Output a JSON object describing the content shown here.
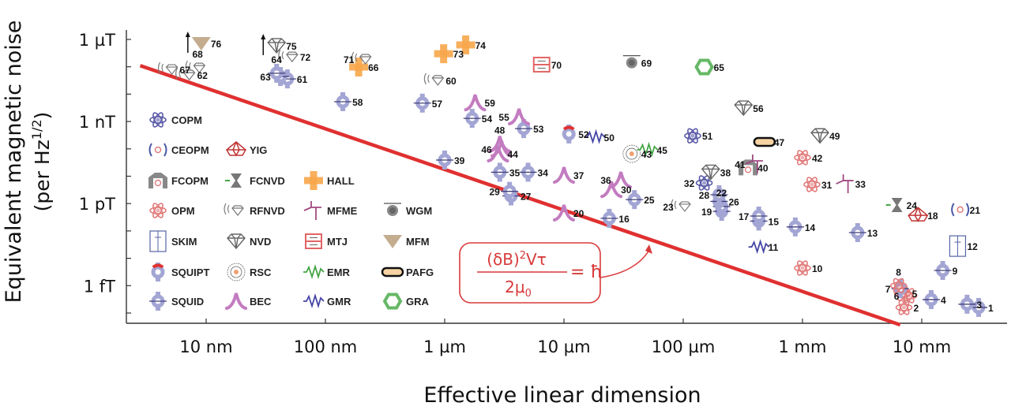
{
  "chart_data": {
    "type": "scatter",
    "title": "",
    "xlabel": "Effective linear dimension",
    "ylabel": "Equivalent magnetic noise",
    "ylabel_line2": "(per Hz",
    "ylabel_sup": "1/2",
    "ylabel_close": ")",
    "x_scale": "log",
    "y_scale": "log",
    "x_unit": "m",
    "y_unit": "T/Hz^1/2",
    "xlim": [
      2.1e-09,
      0.052
    ],
    "ylim": [
      4.3e-17,
      2e-06
    ],
    "grid": false,
    "x_ticks": [
      {
        "value": 1e-08,
        "label": "10 nm"
      },
      {
        "value": 1e-07,
        "label": "100 nm"
      },
      {
        "value": 1e-06,
        "label": "1 µm"
      },
      {
        "value": 1e-05,
        "label": "10 µm"
      },
      {
        "value": 0.0001,
        "label": "100 µm"
      },
      {
        "value": 0.001,
        "label": "1 mm"
      },
      {
        "value": 0.01,
        "label": "10 mm"
      }
    ],
    "y_ticks": [
      {
        "value": 1e-06,
        "label": "1 µT"
      },
      {
        "value": 1e-09,
        "label": "1 nT"
      },
      {
        "value": 1e-12,
        "label": "1 pT"
      },
      {
        "value": 1e-15,
        "label": "1 fT"
      }
    ],
    "limit_line": {
      "color": "#e03030",
      "points": [
        [
          2.8e-09,
          1.1e-07
        ],
        [
          0.0066,
          3.7e-17
        ]
      ]
    },
    "annotation": {
      "num_a": "(δB)",
      "num_sup": "2",
      "num_b": "Vτ",
      "den_a": "2μ",
      "den_sub": "0",
      "rhs": "= ħ",
      "color": "#d83a3a"
    },
    "legend": {
      "placement": "inside-left",
      "rows": [
        [
          "COPM"
        ],
        [
          "CEOPM",
          "YIG"
        ],
        [
          "FCOPM",
          "FCNVD",
          "HALL"
        ],
        [
          "OPM",
          "RFNVD",
          "MFME",
          "WGM"
        ],
        [
          "SKIM",
          "NVD",
          "MTJ",
          "MFM"
        ],
        [
          "SQUIPT",
          "RSC",
          "EMR",
          "PAFG"
        ],
        [
          "SQUID",
          "BEC",
          "GMR",
          "GRA"
        ]
      ]
    },
    "colors": {
      "SQUID": "#a3a5d4",
      "OPM": "#e27b7b",
      "COPM": "#5a5aa8",
      "BEC": "#c37cc0",
      "HALL": "#f7a64a",
      "NVD": "#666666",
      "RFNVD": "#777777",
      "GMR": "#4545a5",
      "EMR": "#45a545",
      "MTJ": "#e26565",
      "WGM": "#888888",
      "MFM": "#c4ac8f",
      "GRA": "#66b866",
      "PAFG": "#f7d3a3",
      "YIG": "#c23535",
      "SKIM": "#5565a5",
      "CEOPM": "#4a5aa8",
      "FCOPM": "#888888",
      "FCNVD": "#777777",
      "RSC": "#666666",
      "MFME": "#a04a80",
      "SQUIPT": "#a3a5d4"
    },
    "points": [
      {
        "id": "1",
        "type": "SQUID",
        "x": 0.03,
        "y": 1.6e-16
      },
      {
        "id": "2",
        "type": "OPM",
        "x": 0.0071,
        "y": 1.6e-16
      },
      {
        "id": "3",
        "type": "SQUID",
        "x": 0.024,
        "y": 2.1e-16
      },
      {
        "id": "4",
        "type": "SQUID",
        "x": 0.012,
        "y": 3.1e-16
      },
      {
        "id": "5",
        "type": "OPM",
        "x": 0.0069,
        "y": 5.2e-16
      },
      {
        "id": "6",
        "type": "OPM",
        "x": 0.0078,
        "y": 4.3e-16
      },
      {
        "id": "7",
        "type": "SQUID",
        "x": 0.0066,
        "y": 7.8e-16
      },
      {
        "id": "8",
        "type": "OPM",
        "x": 0.0064,
        "y": 1e-15
      },
      {
        "id": "9",
        "type": "SQUID",
        "x": 0.015,
        "y": 3.6e-15
      },
      {
        "id": "10",
        "type": "OPM",
        "x": 0.001,
        "y": 4.4e-15
      },
      {
        "id": "11",
        "type": "GMR",
        "x": 0.00043,
        "y": 2.6e-14
      },
      {
        "id": "12",
        "type": "SKIM",
        "x": 0.02,
        "y": 2.8e-14
      },
      {
        "id": "13",
        "type": "SQUID",
        "x": 0.0029,
        "y": 8.7e-14
      },
      {
        "id": "14",
        "type": "SQUID",
        "x": 0.00087,
        "y": 1.4e-13
      },
      {
        "id": "15",
        "type": "SQUID",
        "x": 0.00043,
        "y": 2.3e-13
      },
      {
        "id": "16",
        "type": "SQUID",
        "x": 2.4e-05,
        "y": 2.9e-13
      },
      {
        "id": "17",
        "type": "SQUID",
        "x": 0.00043,
        "y": 3.5e-13
      },
      {
        "id": "18",
        "type": "YIG",
        "x": 0.0093,
        "y": 3.7e-13
      },
      {
        "id": "19",
        "type": "SQUID",
        "x": 0.00021,
        "y": 5.2e-13
      },
      {
        "id": "20",
        "type": "BEC",
        "x": 1e-05,
        "y": 4.6e-13
      },
      {
        "id": "21",
        "type": "CEOPM",
        "x": 0.021,
        "y": 6e-13
      },
      {
        "id": "22",
        "type": "SQUID",
        "x": 0.00021,
        "y": 7.8e-13
      },
      {
        "id": "23",
        "type": "RFNVD",
        "x": 0.0001,
        "y": 7.8e-13
      },
      {
        "id": "24",
        "type": "FCNVD",
        "x": 0.0062,
        "y": 8.9e-13
      },
      {
        "id": "25",
        "type": "SQUID",
        "x": 3.9e-05,
        "y": 1.4e-12
      },
      {
        "id": "26",
        "type": "SQUID",
        "x": 0.0002,
        "y": 1.2e-12
      },
      {
        "id": "27",
        "type": "SQUID",
        "x": 3.6e-06,
        "y": 1.9e-12
      },
      {
        "id": "28",
        "type": "SQUID",
        "x": 0.0002,
        "y": 2.1e-12
      },
      {
        "id": "29",
        "type": "SQUID",
        "x": 3.5e-06,
        "y": 2.8e-12
      },
      {
        "id": "30",
        "type": "BEC",
        "x": 2.5e-05,
        "y": 3.3e-12
      },
      {
        "id": "31",
        "type": "OPM",
        "x": 0.0012,
        "y": 5e-12
      },
      {
        "id": "32",
        "type": "COPM",
        "x": 0.00015,
        "y": 5.7e-12
      },
      {
        "id": "33",
        "type": "MFME",
        "x": 0.0023,
        "y": 5.3e-12
      },
      {
        "id": "34",
        "type": "SQUID",
        "x": 5e-06,
        "y": 1.4e-11
      },
      {
        "id": "35",
        "type": "SQUID",
        "x": 2.9e-06,
        "y": 1.4e-11
      },
      {
        "id": "36",
        "type": "BEC",
        "x": 3e-05,
        "y": 7.4e-12
      },
      {
        "id": "37",
        "type": "BEC",
        "x": 1e-05,
        "y": 1.1e-11
      },
      {
        "id": "38",
        "type": "NVD",
        "x": 0.00017,
        "y": 1.4e-11
      },
      {
        "id": "39",
        "type": "SQUID",
        "x": 1e-06,
        "y": 3.9e-11
      },
      {
        "id": "40",
        "type": "FCOPM",
        "x": 0.00035,
        "y": 2.1e-11
      },
      {
        "id": "41",
        "type": "MFME",
        "x": 0.0004,
        "y": 2.8e-11
      },
      {
        "id": "42",
        "type": "OPM",
        "x": 0.001,
        "y": 4.8e-11
      },
      {
        "id": "43",
        "type": "RSC",
        "x": 3.7e-05,
        "y": 6.6e-11
      },
      {
        "id": "44",
        "type": "BEC",
        "x": 2.8e-06,
        "y": 6.6e-11
      },
      {
        "id": "45",
        "type": "EMR",
        "x": 5e-05,
        "y": 9.3e-11
      },
      {
        "id": "46",
        "type": "BEC",
        "x": 3e-06,
        "y": 1e-10
      },
      {
        "id": "47",
        "type": "PAFG",
        "x": 0.00048,
        "y": 1.8e-10
      },
      {
        "id": "48",
        "type": "BEC",
        "x": 2.9e-06,
        "y": 1.5e-10
      },
      {
        "id": "49",
        "type": "NVD",
        "x": 0.0014,
        "y": 3e-10
      },
      {
        "id": "50",
        "type": "GMR",
        "x": 1.8e-05,
        "y": 2.7e-10
      },
      {
        "id": "51",
        "type": "COPM",
        "x": 0.00012,
        "y": 3e-10
      },
      {
        "id": "52",
        "type": "SQUIPT",
        "x": 1.1e-05,
        "y": 3.5e-10
      },
      {
        "id": "53",
        "type": "SQUID",
        "x": 4.6e-06,
        "y": 5.5e-10
      },
      {
        "id": "54",
        "type": "SQUID",
        "x": 1.7e-06,
        "y": 1.3e-09
      },
      {
        "id": "55",
        "type": "BEC",
        "x": 4.2e-06,
        "y": 1.5e-09
      },
      {
        "id": "56",
        "type": "NVD",
        "x": 0.00032,
        "y": 3.1e-09
      },
      {
        "id": "57",
        "type": "SQUID",
        "x": 6.5e-07,
        "y": 4.7e-09
      },
      {
        "id": "58",
        "type": "SQUID",
        "x": 1.4e-07,
        "y": 5.3e-09
      },
      {
        "id": "59",
        "type": "BEC",
        "x": 1.8e-06,
        "y": 4.9e-09
      },
      {
        "id": "60",
        "type": "RFNVD",
        "x": 8.5e-07,
        "y": 3.2e-08
      },
      {
        "id": "61",
        "type": "SQUID",
        "x": 4.8e-08,
        "y": 3.6e-08
      },
      {
        "id": "62",
        "type": "RFNVD",
        "x": 7e-09,
        "y": 5e-08
      },
      {
        "id": "63",
        "type": "SQUID",
        "x": 4.2e-08,
        "y": 4.4e-08
      },
      {
        "id": "64",
        "type": "SQUID",
        "x": 3.9e-08,
        "y": 5.8e-08
      },
      {
        "id": "65",
        "type": "GRA",
        "x": 0.00015,
        "y": 9.8e-08
      },
      {
        "id": "66",
        "type": "HALL",
        "x": 1.9e-07,
        "y": 9.8e-08
      },
      {
        "id": "67",
        "type": "RFNVD",
        "x": 5e-09,
        "y": 8e-08
      },
      {
        "id": "68",
        "type": "RFNVD",
        "x": 8.5e-09,
        "y": 9.1e-08
      },
      {
        "id": "69",
        "type": "WGM",
        "x": 3.7e-05,
        "y": 1.4e-07
      },
      {
        "id": "70",
        "type": "MTJ",
        "x": 6.5e-06,
        "y": 1.2e-07
      },
      {
        "id": "71",
        "type": "RFNVD",
        "x": 2.1e-07,
        "y": 1.9e-07
      },
      {
        "id": "72",
        "type": "RFNVD",
        "x": 5.1e-08,
        "y": 2.3e-07
      },
      {
        "id": "73",
        "type": "HALL",
        "x": 9.8e-07,
        "y": 3e-07
      },
      {
        "id": "74",
        "type": "HALL",
        "x": 1.5e-06,
        "y": 6.3e-07
      },
      {
        "id": "75",
        "type": "NVD",
        "x": 3.9e-08,
        "y": 5.9e-07,
        "lower_bound": true
      },
      {
        "id": "76",
        "type": "MFM",
        "x": 9.1e-09,
        "y": 7.2e-07,
        "lower_bound": true
      }
    ]
  }
}
